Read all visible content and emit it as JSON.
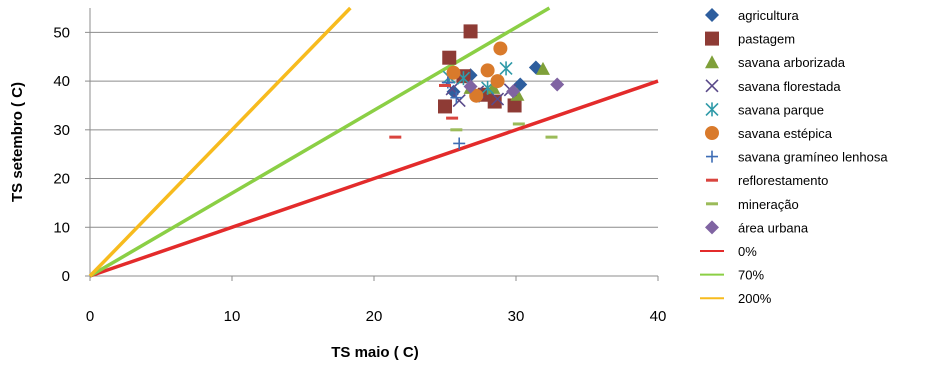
{
  "chart_data": {
    "type": "scatter",
    "xlabel": "TS maio ( C)",
    "ylabel": "TS setembro ( C)",
    "xlim": [
      0,
      40
    ],
    "ylim": [
      0,
      55
    ],
    "xticks": [
      "0",
      "10",
      "20",
      "30",
      "40"
    ],
    "yticks": [
      "0",
      "10",
      "20",
      "30",
      "40",
      "50"
    ],
    "grid": "horizontal",
    "legend_position": "right",
    "series": [
      {
        "name": "agricultura",
        "marker": "diamond",
        "color": "#2E5E9E",
        "points": [
          [
            26.8,
            41.2
          ],
          [
            31.4,
            42.8
          ],
          [
            30.3,
            39.3
          ],
          [
            27.4,
            37.0
          ],
          [
            25.6,
            37.8
          ]
        ]
      },
      {
        "name": "pastagem",
        "marker": "square",
        "color": "#8E3B35",
        "points": [
          [
            26.8,
            50.2
          ],
          [
            25.3,
            44.8
          ],
          [
            25.0,
            34.8
          ],
          [
            28.5,
            35.8
          ],
          [
            29.9,
            35.0
          ],
          [
            26.3,
            41.0
          ],
          [
            27.8,
            37.2
          ]
        ]
      },
      {
        "name": "savana arborizada",
        "marker": "triangle",
        "color": "#7FA03A",
        "points": [
          [
            31.9,
            42.5
          ],
          [
            30.1,
            37.2
          ],
          [
            26.8,
            38.6
          ],
          [
            28.4,
            38.6
          ]
        ]
      },
      {
        "name": "savana florestada",
        "marker": "x",
        "color": "#5A4A8A",
        "points": [
          [
            26.0,
            36.0
          ],
          [
            27.3,
            37.8
          ],
          [
            28.7,
            36.3
          ],
          [
            25.5,
            38.4
          ],
          [
            29.6,
            38.2
          ]
        ]
      },
      {
        "name": "savana parque",
        "marker": "asterisk",
        "color": "#2F9AA8",
        "points": [
          [
            29.3,
            42.6
          ],
          [
            26.3,
            40.6
          ],
          [
            28.0,
            38.6
          ],
          [
            25.3,
            40.8
          ]
        ]
      },
      {
        "name": "savana estépica",
        "marker": "circle",
        "color": "#D97A2B",
        "points": [
          [
            28.9,
            46.7
          ],
          [
            25.6,
            41.7
          ],
          [
            28.0,
            42.2
          ],
          [
            28.7,
            40.0
          ],
          [
            27.2,
            37.0
          ]
        ]
      },
      {
        "name": "savana gramíneo lenhosa",
        "marker": "plus",
        "color": "#3E6DB5",
        "points": [
          [
            26.0,
            27.2
          ],
          [
            25.8,
            36.6
          ],
          [
            25.2,
            39.7
          ]
        ]
      },
      {
        "name": "reflorestamento",
        "marker": "dash",
        "color": "#D9443E",
        "points": [
          [
            21.5,
            28.5
          ],
          [
            25.0,
            39.1
          ],
          [
            25.5,
            32.4
          ]
        ]
      },
      {
        "name": "mineração",
        "marker": "dash",
        "color": "#9BBB59",
        "points": [
          [
            25.8,
            30.0
          ],
          [
            30.2,
            31.2
          ],
          [
            32.5,
            28.5
          ]
        ]
      },
      {
        "name": "área urbana",
        "marker": "diamond",
        "color": "#8064A2",
        "points": [
          [
            26.8,
            38.9
          ],
          [
            29.8,
            37.9
          ],
          [
            32.9,
            39.3
          ]
        ]
      }
    ],
    "reference_lines": [
      {
        "name": "0%",
        "slope": 1.0,
        "color": "#E32B2B"
      },
      {
        "name": "70%",
        "slope": 1.7,
        "color": "#8BCF45"
      },
      {
        "name": "200%",
        "slope": 3.0,
        "color": "#F7BB1E"
      }
    ]
  }
}
